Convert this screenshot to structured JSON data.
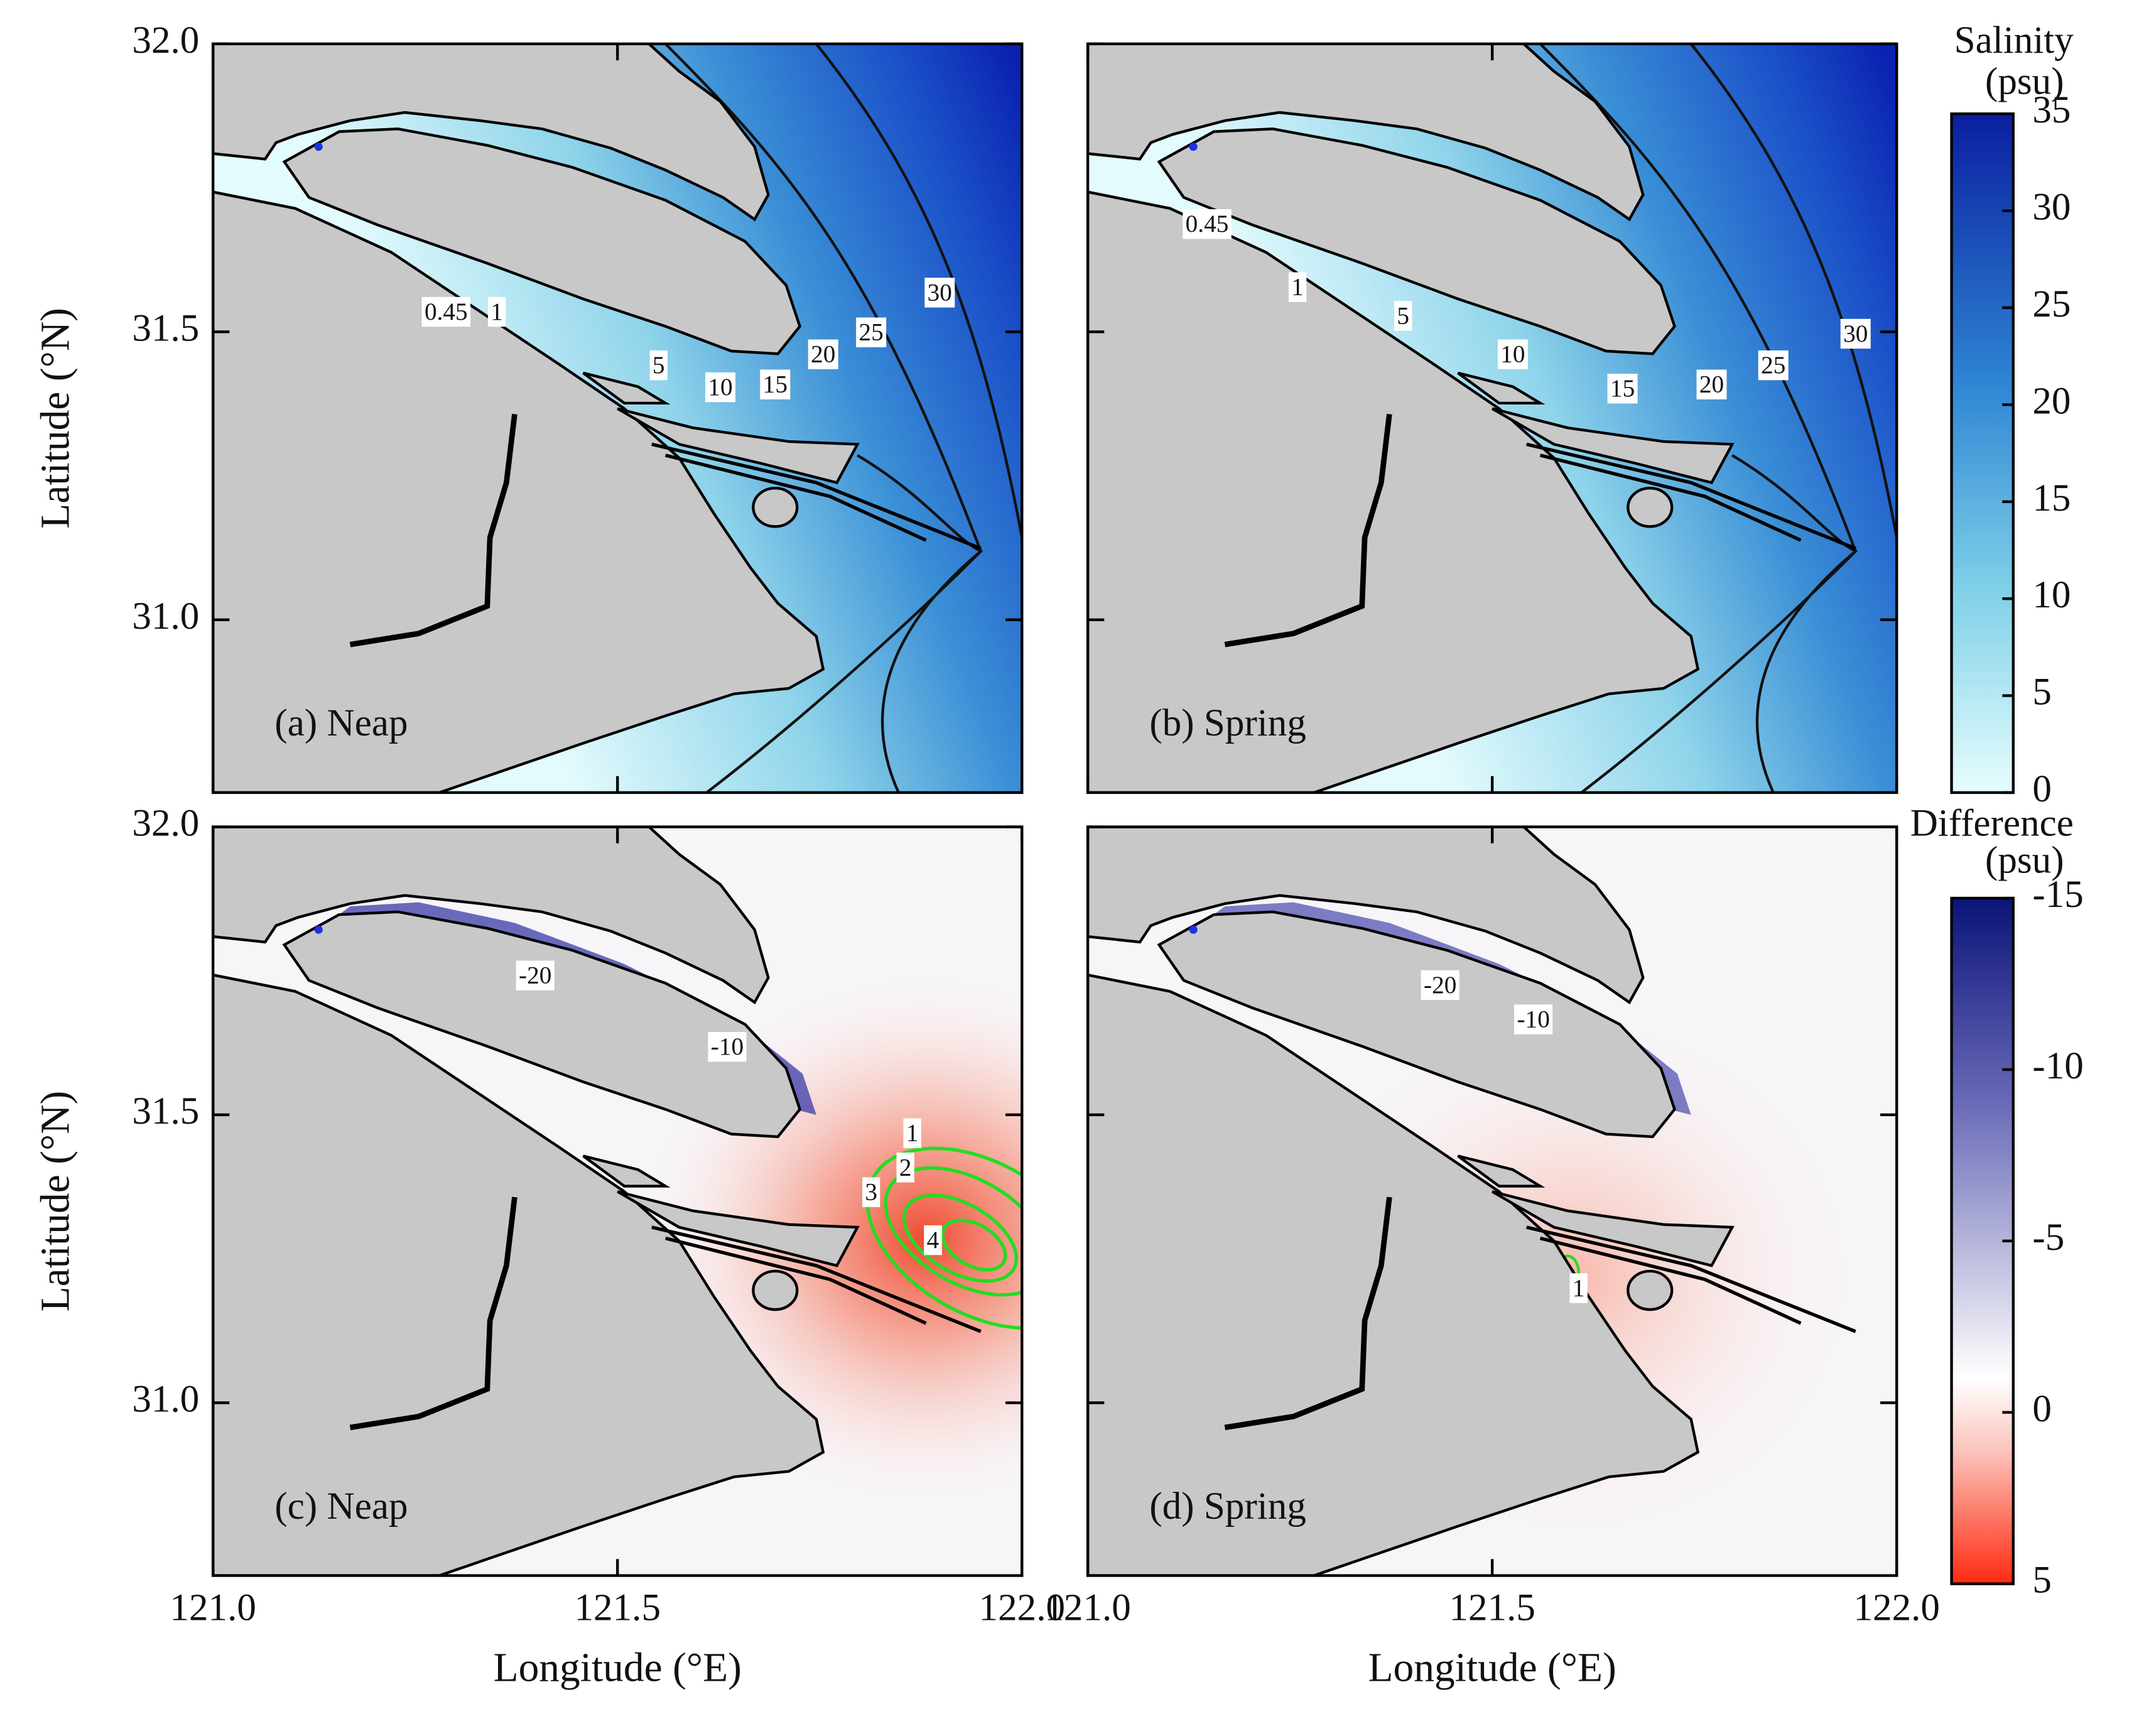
{
  "axes": {
    "xlabel": "Longitude (°E)",
    "ylabel": "Latitude (°N)",
    "xlim": [
      121.0,
      122.0
    ],
    "ylim": [
      30.7,
      32.0
    ],
    "xticks": [
      {
        "value": 121,
        "label": "121.0"
      },
      {
        "value": 121.5,
        "label": "121.5"
      },
      {
        "value": 122,
        "label": "122.0"
      }
    ],
    "yticks": [
      {
        "value": 31,
        "label": "31.0"
      },
      {
        "value": 31.5,
        "label": "31.5"
      },
      {
        "value": 32,
        "label": "32.0"
      }
    ]
  },
  "panels": [
    {
      "label": "(a) Neap",
      "field": "salinity",
      "contour_labels": [
        0.45,
        1,
        5,
        10,
        15,
        20,
        25,
        30
      ]
    },
    {
      "label": "(b) Spring",
      "field": "salinity",
      "contour_labels": [
        0.45,
        1,
        5,
        10,
        15,
        20,
        25,
        30
      ]
    },
    {
      "label": "(c) Neap",
      "field": "difference",
      "contour_labels": [
        -20,
        -10,
        1,
        2,
        3,
        4
      ]
    },
    {
      "label": "(d) Spring",
      "field": "difference",
      "contour_labels": [
        -20,
        -10,
        1
      ]
    }
  ],
  "colorbars": [
    {
      "title": "Salinity",
      "unit": "(psu)",
      "range": [
        0,
        35
      ],
      "ticks": [
        0,
        5,
        10,
        15,
        20,
        25,
        30,
        35
      ]
    },
    {
      "title": "Difference",
      "unit": "(psu)",
      "range": [
        5,
        -15
      ],
      "ticks": [
        -15,
        -10,
        -5,
        0,
        5
      ]
    }
  ]
}
